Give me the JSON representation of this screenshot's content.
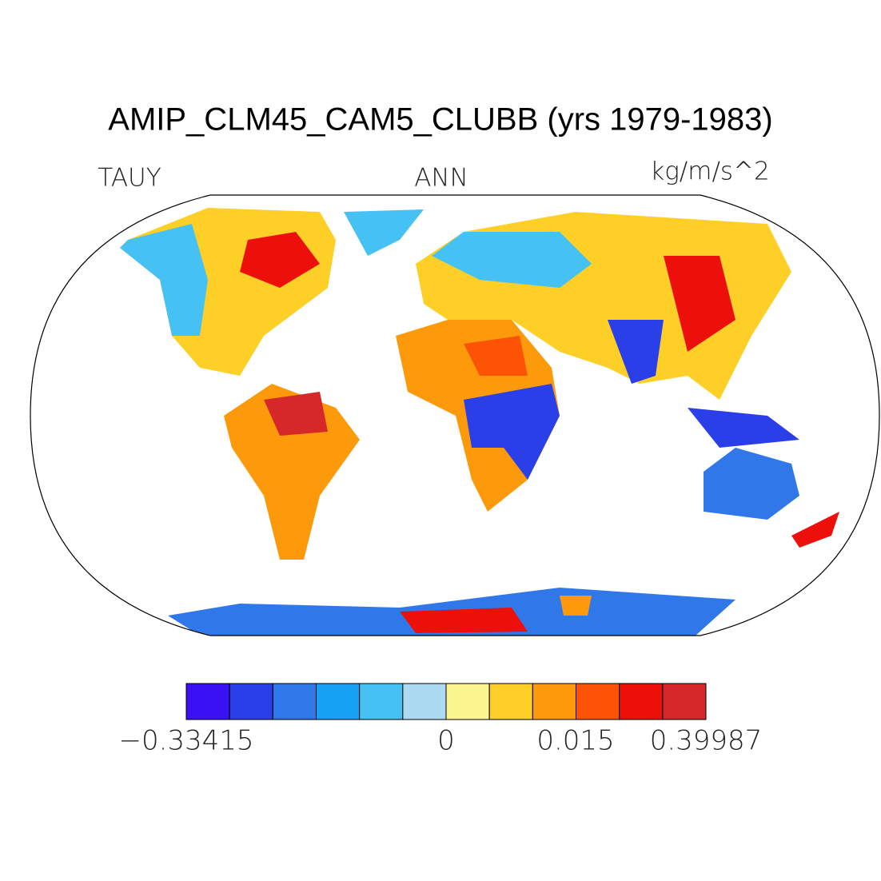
{
  "title": "AMIP_CLM45_CAM5_CLUBB (yrs 1979-1983)",
  "labels": {
    "variable": "TAUY",
    "season": "ANN",
    "units": "kg/m/s^2"
  },
  "colorbar": {
    "colors": [
      "#3a10f5",
      "#2a3fe8",
      "#3078ea",
      "#17a2f5",
      "#45c1f3",
      "#abdaf2",
      "#fdf68e",
      "#fdcf27",
      "#fd9a0b",
      "#fc5305",
      "#ec0f0a",
      "#d62828"
    ],
    "labels": [
      "−0.33415",
      "0",
      "0.015",
      "0.39987"
    ]
  }
}
